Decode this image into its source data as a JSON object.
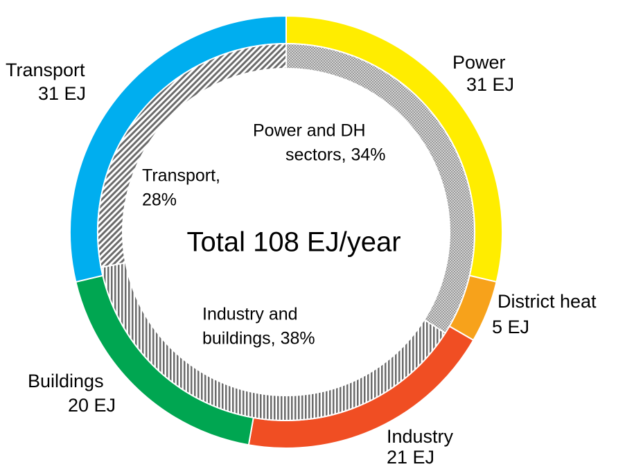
{
  "chart_data": {
    "type": "donut",
    "center_label": "Total  108 EJ/year",
    "outer": {
      "categories": [
        "Power",
        "District heat",
        "Industry",
        "Buildings",
        "Transport"
      ],
      "values": [
        31,
        5,
        21,
        20,
        31
      ],
      "value_labels": [
        "31 EJ",
        "5 EJ",
        "21 EJ",
        "20 EJ",
        "31 EJ"
      ],
      "colors": [
        "#ffed00",
        "#f7a21b",
        "#f04e23",
        "#00a651",
        "#00aeef"
      ]
    },
    "inner": {
      "label_lines": [
        [
          "Power and DH",
          "sectors, 34%"
        ],
        [
          "Industry and",
          "buildings, 38%"
        ],
        [
          "Transport,",
          "28%"
        ]
      ],
      "values": [
        34,
        38,
        28
      ],
      "patterns": [
        "crosshatch",
        "vertical",
        "diagonal"
      ]
    }
  }
}
